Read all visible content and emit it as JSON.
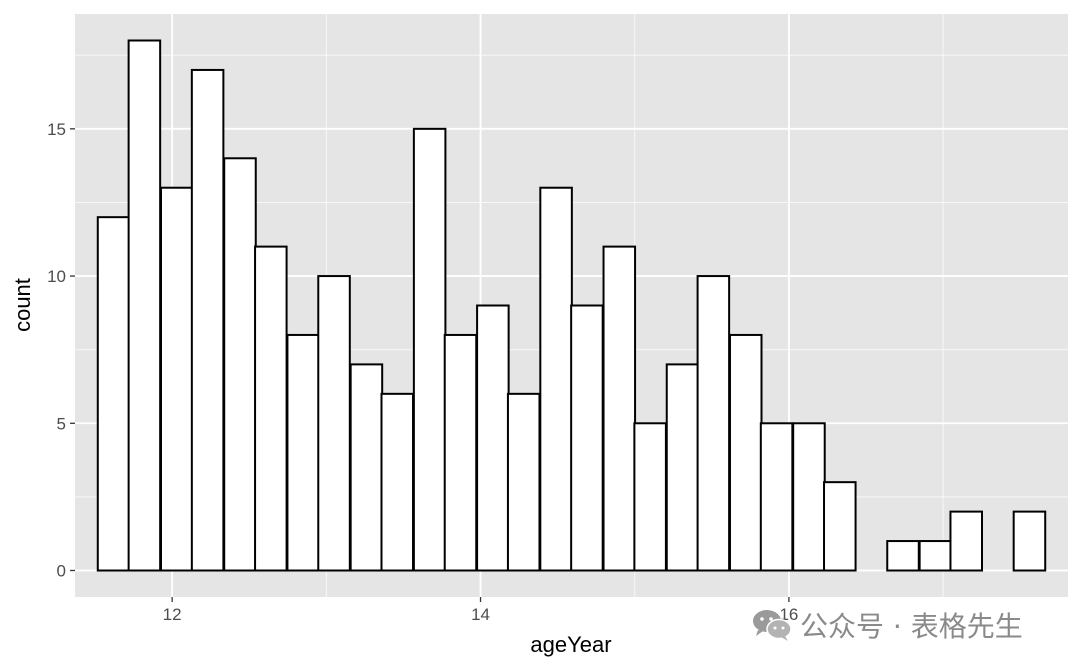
{
  "chart_data": {
    "type": "bar",
    "histogram": true,
    "bin_width": 0.2045,
    "bins": [
      {
        "x": 11.62,
        "count": 12
      },
      {
        "x": 11.82,
        "count": 18
      },
      {
        "x": 12.03,
        "count": 13
      },
      {
        "x": 12.23,
        "count": 17
      },
      {
        "x": 12.44,
        "count": 14
      },
      {
        "x": 12.64,
        "count": 11
      },
      {
        "x": 12.85,
        "count": 8
      },
      {
        "x": 13.05,
        "count": 10
      },
      {
        "x": 13.26,
        "count": 7
      },
      {
        "x": 13.46,
        "count": 6
      },
      {
        "x": 13.67,
        "count": 15
      },
      {
        "x": 13.87,
        "count": 8
      },
      {
        "x": 14.08,
        "count": 9
      },
      {
        "x": 14.28,
        "count": 6
      },
      {
        "x": 14.49,
        "count": 13
      },
      {
        "x": 14.69,
        "count": 9
      },
      {
        "x": 14.9,
        "count": 11
      },
      {
        "x": 15.1,
        "count": 5
      },
      {
        "x": 15.31,
        "count": 7
      },
      {
        "x": 15.51,
        "count": 10
      },
      {
        "x": 15.72,
        "count": 8
      },
      {
        "x": 15.92,
        "count": 5
      },
      {
        "x": 16.13,
        "count": 5
      },
      {
        "x": 16.33,
        "count": 3
      },
      {
        "x": 16.54,
        "count": 0
      },
      {
        "x": 16.74,
        "count": 1
      },
      {
        "x": 16.95,
        "count": 1
      },
      {
        "x": 17.15,
        "count": 2
      },
      {
        "x": 17.36,
        "count": 0
      },
      {
        "x": 17.56,
        "count": 2
      }
    ],
    "xlabel": "ageYear",
    "ylabel": "count",
    "xlim": [
      11.37,
      17.81
    ],
    "ylim": [
      -0.9,
      18.9
    ],
    "x_ticks": [
      {
        "value": 12,
        "label": "12"
      },
      {
        "value": 14,
        "label": "14"
      },
      {
        "value": 16,
        "label": "16"
      }
    ],
    "y_ticks": [
      {
        "value": 0,
        "label": "0"
      },
      {
        "value": 5,
        "label": "5"
      },
      {
        "value": 10,
        "label": "10"
      },
      {
        "value": 15,
        "label": "15"
      }
    ],
    "grid": true,
    "colors": {
      "panel_background": "#e5e5e5",
      "grid_major": "#ffffff",
      "bar_fill": "#ffffff",
      "bar_outline": "#000000"
    }
  },
  "watermark": {
    "text": "公众号 · 表格先生",
    "icon": "wechat-icon"
  }
}
